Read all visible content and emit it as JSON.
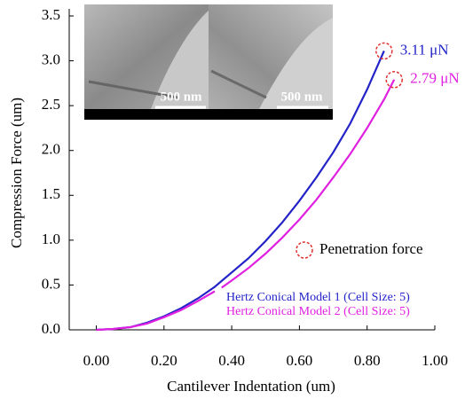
{
  "chart_data": {
    "type": "line",
    "xlabel": "Cantilever Indentation (um)",
    "ylabel": "Compression Force (um)",
    "xlim": [
      -0.08,
      1.0
    ],
    "xticks": [
      {
        "value": 0,
        "label": "0.00"
      },
      {
        "value": 0.2,
        "label": "0.20"
      },
      {
        "value": 0.4,
        "label": "0.40"
      },
      {
        "value": 0.6,
        "label": "0.60"
      },
      {
        "value": 0.8,
        "label": "0.80"
      },
      {
        "value": 1.0,
        "label": "1.00"
      }
    ],
    "ylim": [
      0,
      3.5
    ],
    "yticks": [
      {
        "value": 0,
        "label": "0.0"
      },
      0.5,
      {
        "value": 1,
        "label": "1.0"
      },
      1.5,
      {
        "value": 2,
        "label": "2.0"
      },
      2.5,
      {
        "value": 3,
        "label": "3.0"
      },
      3.5
    ],
    "series": [
      {
        "name": "Hertz Conical Model 1 (Cell Size: 5)",
        "color": "#2323c8",
        "x": [
          0,
          0.05,
          0.1,
          0.15,
          0.2,
          0.25,
          0.3,
          0.35,
          0.4,
          0.45,
          0.5,
          0.55,
          0.6,
          0.65,
          0.7,
          0.75,
          0.8,
          0.85
        ],
        "values": [
          0,
          0.01,
          0.03,
          0.08,
          0.15,
          0.24,
          0.35,
          0.48,
          0.64,
          0.8,
          0.99,
          1.2,
          1.44,
          1.7,
          1.98,
          2.3,
          2.68,
          3.11
        ]
      },
      {
        "name": "Hertz Conical Model 2 (Cell Size: 5)",
        "color": "#e020e0",
        "x": [
          0,
          0.05,
          0.1,
          0.15,
          0.2,
          0.25,
          0.3,
          0.35,
          0.36,
          0.37,
          0.4,
          0.45,
          0.5,
          0.55,
          0.6,
          0.65,
          0.7,
          0.75,
          0.8,
          0.85,
          0.88
        ],
        "values": [
          0,
          0.01,
          0.03,
          0.07,
          0.14,
          0.22,
          0.32,
          0.43,
          null,
          0.47,
          0.55,
          0.69,
          0.85,
          1.03,
          1.23,
          1.45,
          1.7,
          1.96,
          2.25,
          2.57,
          2.79
        ]
      }
    ],
    "annotations": [
      {
        "text": "3.11 μN",
        "series": 0
      },
      {
        "text": "2.79 μN",
        "series": 1
      }
    ],
    "marker_legend": "Penetration force",
    "inset_labels": [
      "500 nm",
      "500 nm"
    ]
  }
}
